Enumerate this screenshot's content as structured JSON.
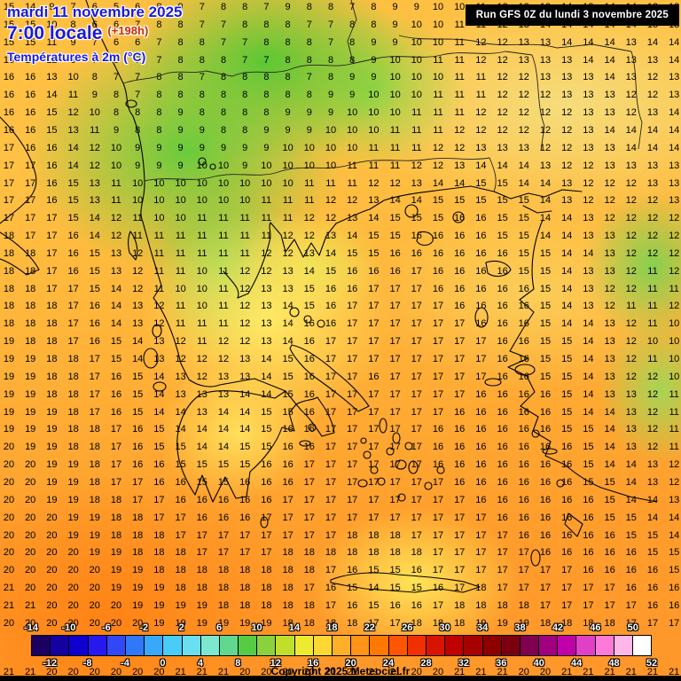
{
  "header": {
    "date_line": "mardi 11 novembre 2025",
    "time_line": "7:00 locale",
    "offset": "(+198h)",
    "param_line": "Températures à 2m (°C)",
    "run_info": "Run GFS 0Z du lundi 3 novembre 2025"
  },
  "footer": {
    "copyright": "Copyright 2025 Meteociel.fr"
  },
  "colors": {
    "title-blue": "#1b1bd9",
    "offset-red": "#cc2a00",
    "runbox-bg": "#000000"
  },
  "scale": {
    "top_labels": [
      "-14",
      "-10",
      "-6",
      "-2",
      "2",
      "6",
      "10",
      "14",
      "18",
      "22",
      "26",
      "30",
      "34",
      "38",
      "42",
      "46",
      "50"
    ],
    "bottom_labels": [
      "-12",
      "-8",
      "-4",
      "0",
      "4",
      "8",
      "12",
      "16",
      "20",
      "24",
      "28",
      "32",
      "36",
      "40",
      "44",
      "48",
      "52"
    ],
    "colors": [
      "#1a0060",
      "#1500a0",
      "#1000d0",
      "#2818f0",
      "#3048f8",
      "#3078fa",
      "#38a8fa",
      "#48ccf8",
      "#68e0f0",
      "#7ce8d0",
      "#60d890",
      "#55cc44",
      "#8ad23c",
      "#bfdf2a",
      "#eeea30",
      "#ffd732",
      "#ffb028",
      "#ff9416",
      "#ff7800",
      "#ff5500",
      "#f03000",
      "#d81400",
      "#c00000",
      "#a60000",
      "#8c0000",
      "#7a0010",
      "#800050",
      "#a00080",
      "#c000a8",
      "#e040c8",
      "#ff7ad8",
      "#ffb6e8",
      "#ffffff"
    ]
  },
  "grid": {
    "rows": [
      "15 14 9 7 6 5 6 8 9 7 8 8 7 9 8 8 7 8 9 9 10 10 11 12 13 13 14 13 14 14 13 12",
      "15 15 10 8 6 6 7 8 8 7 7 8 8 8 7 7 8 8 9 10 10 11 11 12 13 14 14 14 14 14 13 13",
      "15 15 11 9 7 6 6 7 8 8 7 7 8 8 8 7 8 9 9 10 10 11 12 12 13 13 14 14 14 13 14 14",
      "16 15 12 9 7 6 7 7 8 8 8 7 7 8 8 8 8 9 10 10 11 11 12 12 13 13 13 14 14 13 13 14",
      "16 16 13 10 8 7 7 8 8 7 8 8 8 8 7 8 9 9 10 10 10 11 11 12 12 13 13 13 14 13 12 13",
      "16 16 14 11 9 8 7 8 8 8 8 8 8 8 8 9 9 10 10 10 11 11 11 12 12 12 13 13 13 12 12 13",
      "16 16 15 12 10 8 8 8 9 8 8 8 8 9 9 9 10 10 10 11 11 11 12 12 12 12 12 13 13 12 13 14",
      "16 16 15 13 11 9 8 8 9 9 8 8 9 9 9 10 10 10 11 11 11 12 12 12 12 12 12 13 14 14 14 14",
      "17 16 16 14 12 10 9 9 9 9 9 9 9 10 10 10 10 11 11 11 12 12 13 13 13 12 12 13 13 14 14 14",
      "17 17 16 14 12 10 9 9 9 10 10 9 10 10 10 10 11 11 11 12 12 13 14 14 14 13 12 12 13 13 13 13",
      "17 17 16 15 13 11 10 10 10 10 10 10 10 10 11 11 11 12 12 13 14 14 15 15 14 14 13 12 12 12 13 13",
      "17 17 16 15 13 11 10 10 10 10 10 10 11 11 11 12 12 13 14 14 15 15 15 15 15 14 13 12 12 12 12 13",
      "17 17 17 15 14 12 11 10 10 11 11 11 11 11 12 12 13 14 15 15 15 16 16 15 15 14 14 13 12 12 12 12",
      "18 17 17 16 14 12 11 11 11 11 11 11 11 12 12 13 14 15 15 16 16 16 16 15 15 14 14 13 13 12 12 12",
      "18 18 17 16 15 13 12 11 11 11 11 11 12 12 13 14 15 15 16 16 16 16 16 16 15 15 14 14 13 12 12 12",
      "18 18 17 16 15 13 12 11 11 10 11 12 12 13 14 15 16 16 16 17 16 16 16 16 15 15 14 13 13 12 11 12",
      "18 18 17 17 15 14 12 11 10 10 11 12 13 13 15 16 16 17 17 17 16 16 16 16 16 15 14 13 12 12 11 11",
      "18 18 18 17 16 14 13 12 11 10 11 12 13 14 15 16 17 17 17 17 17 16 16 16 16 15 14 13 12 11 11 12",
      "18 18 18 17 16 14 13 12 11 11 11 12 13 14 16 16 17 17 17 17 17 17 16 16 16 15 14 14 13 12 11 10",
      "19 18 18 17 16 15 14 13 12 11 12 12 13 14 16 17 17 17 17 17 17 17 17 16 16 15 15 14 13 12 10 10",
      "19 19 18 18 17 15 14 13 12 12 12 13 14 15 16 17 17 17 17 17 17 17 17 16 16 15 15 14 13 12 11 10",
      "19 19 18 18 17 16 15 14 13 12 13 13 14 15 16 17 17 16 17 17 17 17 17 16 16 15 15 14 13 12 12 10",
      "19 19 18 18 17 16 15 14 13 13 13 14 14 15 16 17 17 17 17 17 17 17 16 16 16 16 15 14 13 13 12 11",
      "19 19 19 18 17 16 15 14 14 13 14 14 15 15 16 17 17 17 17 17 17 16 16 16 16 16 15 14 14 13 12 11",
      "19 19 19 18 18 17 16 15 14 14 14 14 15 16 16 17 17 17 17 17 16 16 16 16 16 16 15 15 14 13 12 11",
      "20 19 19 18 18 17 16 15 15 14 14 15 15 16 16 17 17 17 17 17 16 16 16 16 16 16 16 15 14 13 12 11",
      "20 20 19 19 18 17 16 16 15 15 15 15 16 16 17 17 17 17 17 17 16 16 16 16 16 16 16 15 14 14 13 12",
      "20 20 19 19 18 17 17 16 16 15 15 16 16 16 17 17 17 17 17 17 17 16 16 16 16 16 16 15 15 14 13 12",
      "20 20 19 19 18 18 17 17 16 16 16 16 16 17 17 17 17 17 17 17 17 17 16 16 16 16 16 16 15 14 14 13",
      "20 20 20 19 19 18 18 17 17 16 16 16 17 17 17 17 17 17 17 17 17 17 17 16 16 16 16 16 15 15 14 14",
      "20 20 20 19 19 18 18 18 17 17 17 17 17 17 17 17 18 18 18 17 17 17 17 17 16 16 16 16 16 15 15 14",
      "20 20 20 20 19 19 18 18 18 17 17 17 17 18 18 18 18 18 18 18 17 17 17 17 17 16 16 16 16 16 15 15",
      "20 20 20 20 20 19 19 18 18 18 18 18 18 18 18 17 16 15 15 16 17 17 17 17 17 17 17 16 16 16 16 15",
      "21 20 20 20 20 19 19 19 18 18 18 18 18 18 17 16 15 14 15 15 16 17 18 17 17 17 17 17 17 16 16 16",
      "21 21 20 20 20 20 19 19 19 19 18 18 18 18 18 17 16 15 16 16 17 18 18 18 18 17 17 17 17 17 16 16",
      "20 20 20 20 20 20 20 19 19 19 19 19 19 18 18 18 18 17 17 18 18 18 19 19 19 18 18 18 18 17 17 17"
    ],
    "bottom_row": "21 21 20 20 20 20 20 20 21 21 21 20 20 20 20 21 21 21 21 20 20 21 21 21 20 20 21 21 21 21 21 21"
  }
}
